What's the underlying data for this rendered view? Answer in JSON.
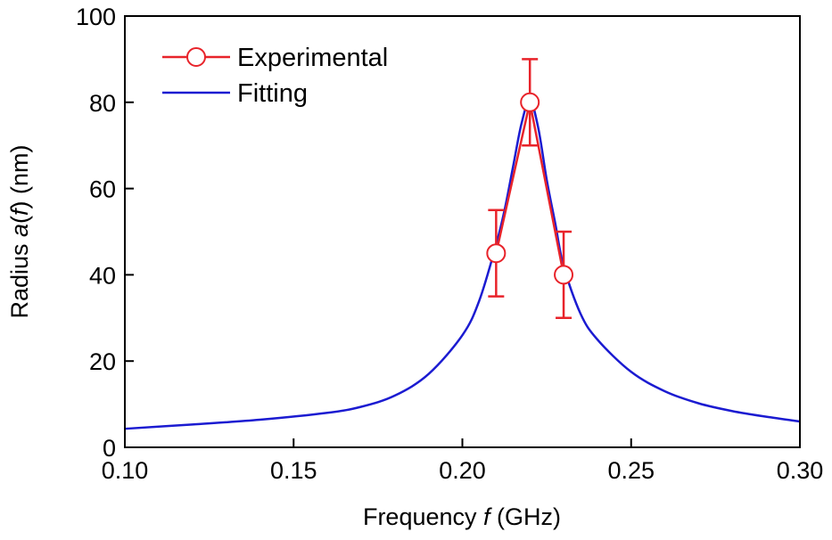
{
  "chart_data": {
    "type": "line",
    "xlabel_parts": [
      "Frequency ",
      "f",
      " (GHz)"
    ],
    "ylabel_parts": [
      "Radius ",
      "a",
      "(",
      "f",
      ") (nm)"
    ],
    "xlim": [
      0.1,
      0.3
    ],
    "ylim": [
      0,
      100
    ],
    "x_ticks": [
      "0.10",
      "0.15",
      "0.20",
      "0.25",
      "0.30"
    ],
    "y_ticks": [
      "0",
      "20",
      "40",
      "60",
      "80",
      "100"
    ],
    "grid": false,
    "legend_position": "top-left",
    "series": [
      {
        "name": "Experimental",
        "color": "#e8232a",
        "marker": "open-circle",
        "x": [
          0.21,
          0.22,
          0.23
        ],
        "y": [
          45,
          80,
          40
        ],
        "yerr": [
          10,
          10,
          10
        ]
      },
      {
        "name": "Fitting",
        "color": "#1b1bd1",
        "marker": "none",
        "x": [
          0.1,
          0.12,
          0.14,
          0.16,
          0.17,
          0.18,
          0.19,
          0.2,
          0.205,
          0.21,
          0.2125,
          0.215,
          0.2175,
          0.22,
          0.2225,
          0.225,
          0.2275,
          0.23,
          0.235,
          0.24,
          0.25,
          0.26,
          0.27,
          0.28,
          0.29,
          0.3
        ],
        "y": [
          4.3,
          5.3,
          6.4,
          8.0,
          9.4,
          12.0,
          17.0,
          26.0,
          34.0,
          47.0,
          55.0,
          65.0,
          75.0,
          80.5,
          74.0,
          62.0,
          52.0,
          42.0,
          31.0,
          25.0,
          17.5,
          13.0,
          10.2,
          8.4,
          7.1,
          6.0
        ]
      }
    ]
  }
}
